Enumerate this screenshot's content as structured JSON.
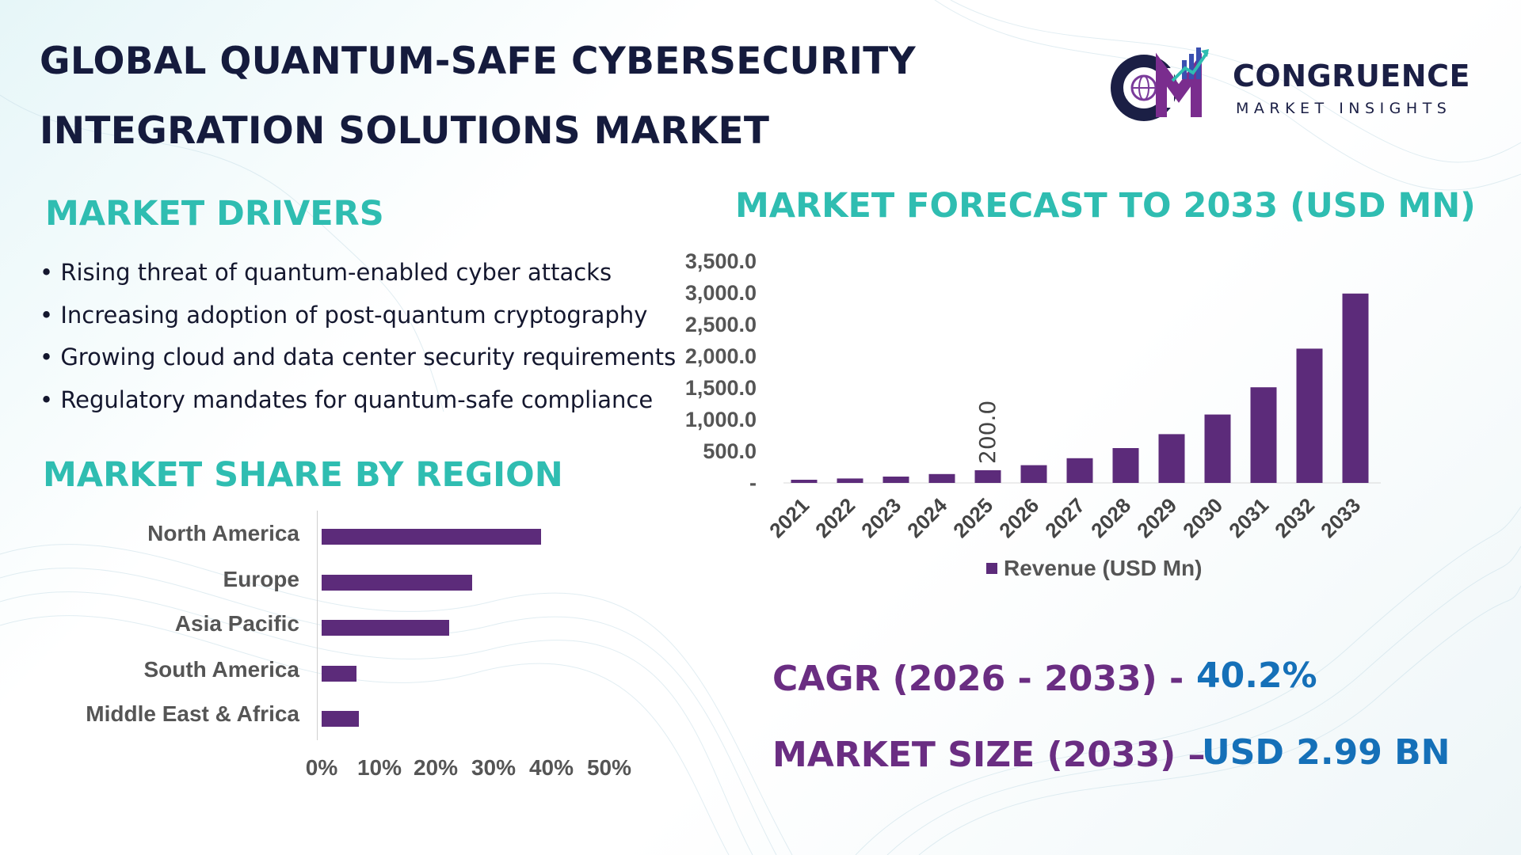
{
  "title": {
    "line1": "GLOBAL QUANTUM-SAFE CYBERSECURITY",
    "line2": "INTEGRATION SOLUTIONS MARKET"
  },
  "logo": {
    "monogram": "CM",
    "name": "CONGRUENCE",
    "tagline": "MARKET INSIGHTS"
  },
  "drivers": {
    "heading": "MARKET DRIVERS",
    "items": [
      "Rising threat of quantum-enabled cyber attacks",
      "Increasing adoption of post-quantum cryptography",
      "Growing cloud and data center security requirements",
      "Regulatory mandates for quantum-safe compliance"
    ]
  },
  "region": {
    "heading": "MARKET SHARE BY REGION"
  },
  "forecast": {
    "heading": "MARKET FORECAST TO 2033 (USD MN)"
  },
  "kpis": {
    "cagr_label": "CAGR (2026 - 2033) -",
    "cagr_value": "40.2%",
    "size_label": "MARKET SIZE (2033) –",
    "size_value": "USD 2.99 BN"
  },
  "colors": {
    "bar": "#5c2b7a",
    "heading_teal": "#2fbdb1",
    "title_navy": "#151b3d",
    "kpi_purple": "#6a2d82",
    "kpi_blue": "#1570b8"
  },
  "chart_data": [
    {
      "type": "bar",
      "orientation": "horizontal",
      "categories": [
        "North America",
        "Europe",
        "Asia Pacific",
        "South America",
        "Middle East & Africa"
      ],
      "values": [
        38,
        26,
        22,
        6,
        6.5
      ],
      "xlim": [
        0,
        50
      ],
      "x_tick_labels": [
        "0%",
        "10%",
        "20%",
        "30%",
        "40%",
        "50%"
      ],
      "grid": false
    },
    {
      "type": "bar",
      "categories": [
        "2021",
        "2022",
        "2023",
        "2024",
        "2025",
        "2026",
        "2027",
        "2028",
        "2029",
        "2030",
        "2031",
        "2032",
        "2033"
      ],
      "series": [
        {
          "name": "Revenue (USD Mn)",
          "values": [
            50,
            70,
            100,
            140,
            200,
            280,
            390,
            550,
            770,
            1080,
            1510,
            2120,
            2990
          ]
        }
      ],
      "data_labels": [
        {
          "category": "2025",
          "text": "200.0"
        }
      ],
      "y_tick_labels": [
        "-",
        "500.0",
        "1,000.0",
        "1,500.0",
        "2,000.0",
        "2,500.0",
        "3,000.0",
        "3,500.0"
      ],
      "ylim": [
        0,
        3500
      ],
      "legend": "bottom",
      "grid": false
    }
  ]
}
